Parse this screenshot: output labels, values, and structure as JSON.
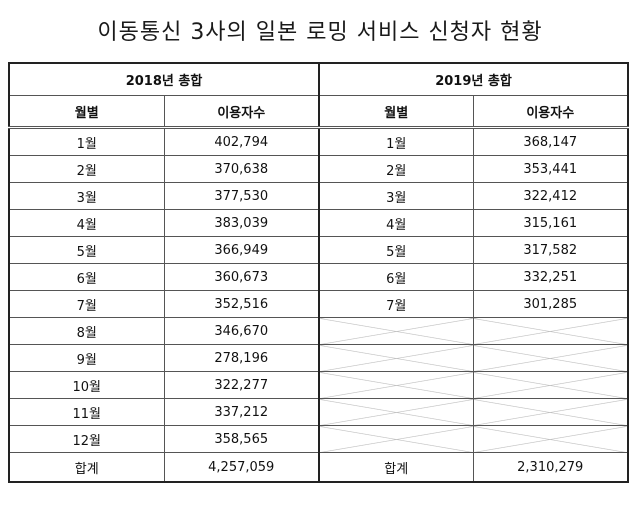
{
  "title": "이동통신 3사의 일본 로밍 서비스 신청자 현황",
  "table": {
    "groups": [
      {
        "label": "2018년 총합"
      },
      {
        "label": "2019년 총합"
      }
    ],
    "columns": {
      "month": "월별",
      "users": "이용자수"
    },
    "rows": [
      {
        "m2018": "1월",
        "v2018": "402,794",
        "m2019": "1월",
        "v2019": "368,147"
      },
      {
        "m2018": "2월",
        "v2018": "370,638",
        "m2019": "2월",
        "v2019": "353,441"
      },
      {
        "m2018": "3월",
        "v2018": "377,530",
        "m2019": "3월",
        "v2019": "322,412"
      },
      {
        "m2018": "4월",
        "v2018": "383,039",
        "m2019": "4월",
        "v2019": "315,161"
      },
      {
        "m2018": "5월",
        "v2018": "366,949",
        "m2019": "5월",
        "v2019": "317,582"
      },
      {
        "m2018": "6월",
        "v2018": "360,673",
        "m2019": "6월",
        "v2019": "332,251"
      },
      {
        "m2018": "7월",
        "v2018": "352,516",
        "m2019": "7월",
        "v2019": "301,285"
      },
      {
        "m2018": "8월",
        "v2018": "346,670",
        "m2019": null,
        "v2019": null
      },
      {
        "m2018": "9월",
        "v2018": "278,196",
        "m2019": null,
        "v2019": null
      },
      {
        "m2018": "10월",
        "v2018": "322,277",
        "m2019": null,
        "v2019": null
      },
      {
        "m2018": "11월",
        "v2018": "337,212",
        "m2019": null,
        "v2019": null
      },
      {
        "m2018": "12월",
        "v2018": "358,565",
        "m2019": null,
        "v2019": null
      }
    ],
    "total": {
      "label": "합계",
      "v2018": "4,257,059",
      "v2019": "2,310,279"
    }
  }
}
